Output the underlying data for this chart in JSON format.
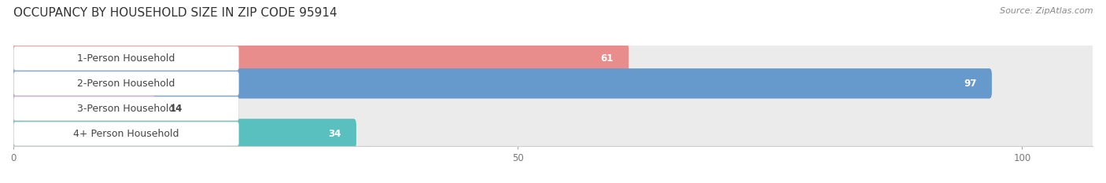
{
  "title": "OCCUPANCY BY HOUSEHOLD SIZE IN ZIP CODE 95914",
  "source_text": "Source: ZipAtlas.com",
  "categories": [
    "1-Person Household",
    "2-Person Household",
    "3-Person Household",
    "4+ Person Household"
  ],
  "values": [
    61,
    97,
    14,
    34
  ],
  "bar_colors": [
    "#E88C8C",
    "#6699CC",
    "#C8AACE",
    "#5ABFBF"
  ],
  "row_bg_color": "#EBEBEB",
  "xlim_data": 107,
  "xticks": [
    0,
    50,
    100
  ],
  "title_fontsize": 11,
  "label_fontsize": 9,
  "value_fontsize": 8.5,
  "source_fontsize": 8,
  "background_color": "#FFFFFF",
  "text_color": "#444444",
  "source_color": "#888888"
}
